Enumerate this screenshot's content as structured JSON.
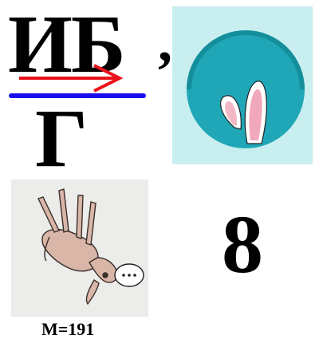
{
  "puzzle": {
    "top_letters": "ИБ",
    "bottom_letter": "Г",
    "comma": ",",
    "number": "8",
    "caption": "М=191"
  },
  "pictures": {
    "rabbit": "rabbit-ears-in-hole",
    "goat": "upside-down-goat-with-speech-bubble"
  },
  "colors": {
    "arrow": "#e8141c",
    "line": "#1a0ef0",
    "rabbit_bg": "#c8eef0",
    "hole": "#1fa7b7",
    "goat_bg": "#ececea"
  }
}
